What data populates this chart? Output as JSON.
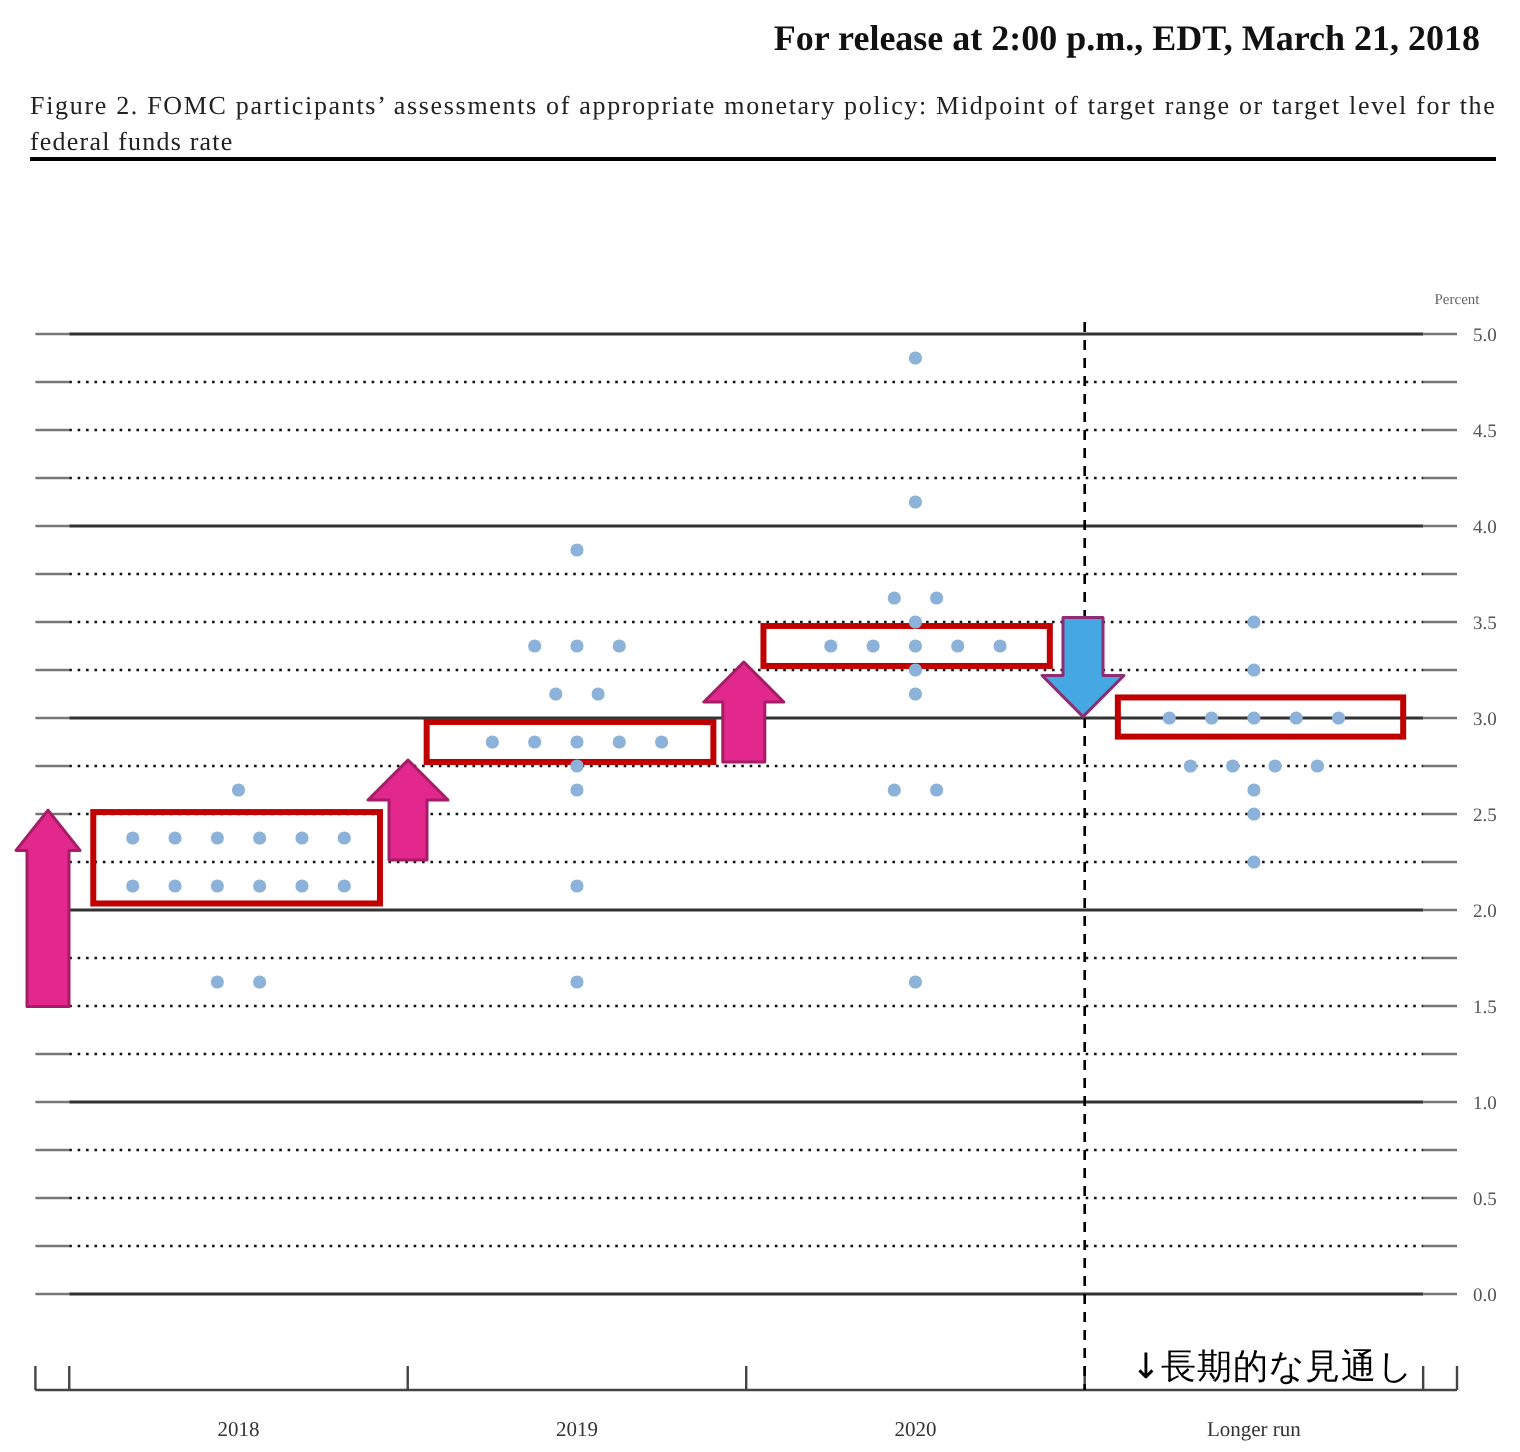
{
  "chart_data": {
    "type": "scatter",
    "title": "Figure 2. FOMC participants’ assessments of appropriate monetary policy: Midpoint of target range or target level for the federal funds rate",
    "ylabel": "Percent",
    "annotations": [
      "For release at 2:00 p.m., EDT, March 21, 2018",
      "↓長期的な見通し"
    ],
    "categories": [
      "2018",
      "2019",
      "2020",
      "Longer run"
    ],
    "series": [
      {
        "color": "#8db2d9",
        "values": [
          2.625,
          3.875,
          4.875,
          3.5
        ]
      },
      {
        "color": "#8db2d9",
        "values": [
          2.375,
          3.375,
          4.125,
          3.25
        ]
      },
      {
        "color": "#8db2d9",
        "values": [
          2.375,
          3.375,
          3.625,
          3
        ]
      },
      {
        "color": "#8db2d9",
        "values": [
          2.375,
          3.375,
          3.625,
          3
        ]
      },
      {
        "color": "#8db2d9",
        "values": [
          2.375,
          3.125,
          3.5,
          3
        ]
      },
      {
        "color": "#8db2d9",
        "values": [
          2.375,
          3.125,
          3.375,
          3
        ]
      },
      {
        "color": "#8db2d9",
        "values": [
          2.375,
          2.875,
          3.375,
          3
        ]
      },
      {
        "color": "#8db2d9",
        "values": [
          2.125,
          2.875,
          3.375,
          2.75
        ]
      },
      {
        "color": "#8db2d9",
        "values": [
          2.125,
          2.875,
          3.375,
          2.75
        ]
      },
      {
        "color": "#8db2d9",
        "values": [
          2.125,
          2.875,
          3.375,
          2.75
        ]
      },
      {
        "color": "#8db2d9",
        "values": [
          2.125,
          2.875,
          3.25,
          2.75
        ]
      },
      {
        "color": "#8db2d9",
        "values": [
          2.125,
          2.75,
          3.125,
          2.625
        ]
      },
      {
        "color": "#8db2d9",
        "values": [
          2.125,
          2.625,
          2.625,
          2.5
        ]
      },
      {
        "color": "#8db2d9",
        "values": [
          1.625,
          2.125,
          2.625,
          2.25
        ]
      },
      {
        "color": "#8db2d9",
        "values": [
          1.625,
          1.625,
          1.625,
          null
        ]
      }
    ],
    "ylim": [
      -0.5,
      5
    ],
    "yticks": [
      {
        "value": 0,
        "label": "0.0"
      },
      {
        "value": 0.25,
        "label": null
      },
      0.5,
      {
        "value": 0.75,
        "label": null
      },
      {
        "value": 1,
        "label": "1.0"
      },
      {
        "value": 1.25,
        "label": null
      },
      1.5,
      {
        "value": 1.75,
        "label": null
      },
      {
        "value": 2,
        "label": "2.0"
      },
      {
        "value": 2.25,
        "label": null
      },
      2.5,
      {
        "value": 2.75,
        "label": null
      },
      {
        "value": 3,
        "label": "3.0"
      },
      {
        "value": 3.25,
        "label": null
      },
      3.5,
      {
        "value": 3.75,
        "label": null
      },
      {
        "value": 4,
        "label": "4.0"
      },
      {
        "value": 4.25,
        "label": null
      },
      4.5,
      {
        "value": 4.75,
        "label": null
      },
      {
        "value": 5,
        "label": "5.0"
      }
    ],
    "grid": "y",
    "marker": "circle"
  }
}
